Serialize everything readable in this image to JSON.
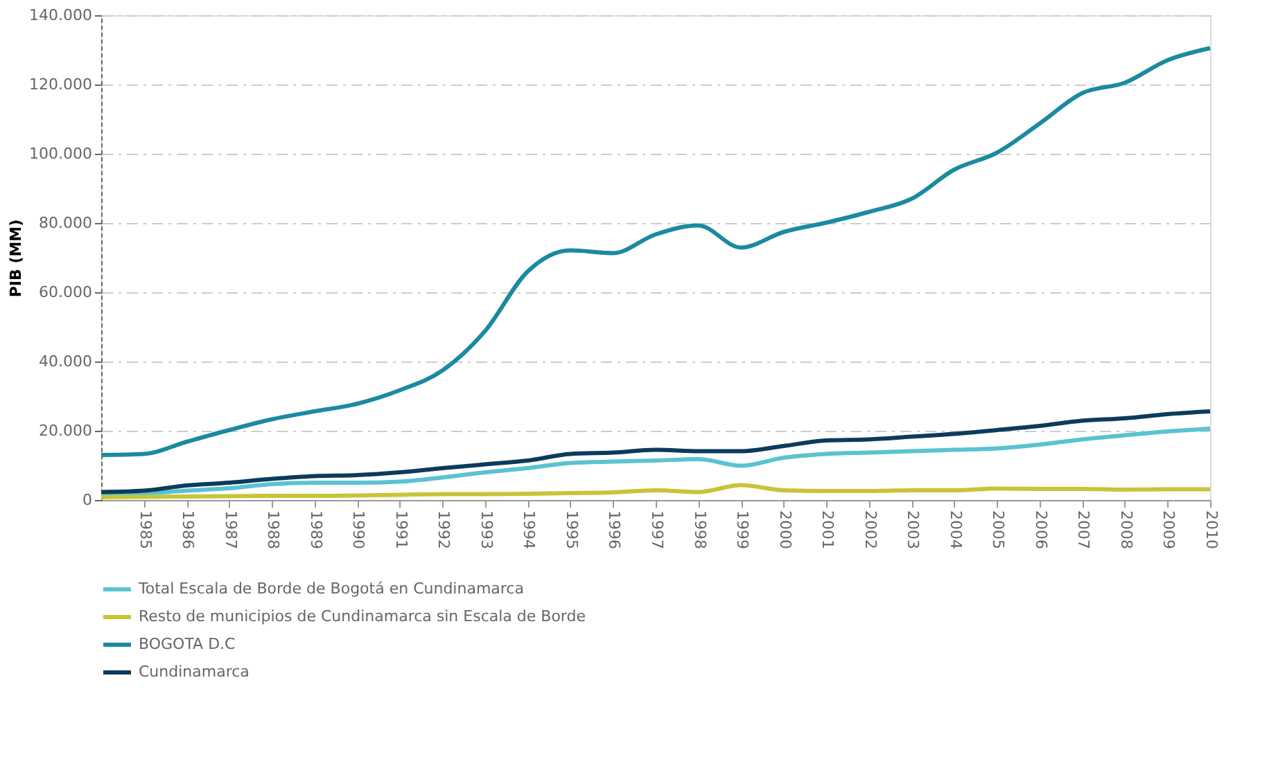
{
  "chart_data": {
    "type": "line",
    "ylabel": "PIB (MM)",
    "x": [
      1984,
      1985,
      1986,
      1987,
      1988,
      1989,
      1990,
      1991,
      1992,
      1993,
      1994,
      1995,
      1996,
      1997,
      1998,
      1999,
      2000,
      2001,
      2002,
      2003,
      2004,
      2005,
      2006,
      2007,
      2008,
      2009,
      2010
    ],
    "series": [
      {
        "name": "Total Escala de Borde de Bogotá en Cundinamarca",
        "color": "#5bc2d0",
        "values": [
          1500,
          1900,
          2700,
          3400,
          4600,
          5000,
          5000,
          5300,
          6500,
          8000,
          9200,
          10700,
          11100,
          11400,
          11800,
          9900,
          12200,
          13300,
          13700,
          14100,
          14500,
          14900,
          16000,
          17500,
          18700,
          19800,
          20600
        ]
      },
      {
        "name": "Resto de municipios de Cundinamarca sin Escala de Borde",
        "color": "#c8c43a",
        "values": [
          800,
          900,
          1000,
          1100,
          1200,
          1200,
          1300,
          1500,
          1700,
          1700,
          1800,
          2000,
          2200,
          2800,
          2300,
          4300,
          2800,
          2600,
          2600,
          2800,
          2800,
          3300,
          3200,
          3200,
          3000,
          3100,
          3100
        ]
      },
      {
        "name": "BOGOTA D.C",
        "color": "#1b8aa0",
        "values": [
          13000,
          13300,
          16800,
          20200,
          23300,
          25600,
          27800,
          31700,
          37400,
          48800,
          66000,
          72100,
          71300,
          76700,
          79300,
          72900,
          77400,
          80100,
          83200,
          87000,
          95400,
          100300,
          108700,
          117500,
          120500,
          127000,
          130500
        ]
      },
      {
        "name": "Cundinamarca",
        "color": "#0c3b5c",
        "values": [
          2300,
          2700,
          4200,
          5000,
          6100,
          6900,
          7200,
          8000,
          9200,
          10300,
          11400,
          13300,
          13700,
          14500,
          14100,
          14100,
          15600,
          17200,
          17500,
          18300,
          19100,
          20200,
          21400,
          22900,
          23600,
          24800,
          25600
        ]
      }
    ],
    "xlim": [
      1984,
      2010
    ],
    "xticks": [
      1985,
      1986,
      1987,
      1988,
      1989,
      1990,
      1991,
      1992,
      1993,
      1994,
      1995,
      1996,
      1997,
      1998,
      1999,
      2000,
      2001,
      2002,
      2003,
      2004,
      2005,
      2006,
      2007,
      2008,
      2009,
      2010
    ],
    "ylim": [
      0,
      140000
    ],
    "yticks": [
      0,
      {
        "value": 20000,
        "label": "20.000"
      },
      {
        "value": 40000,
        "label": "40.000"
      },
      {
        "value": 60000,
        "label": "60.000"
      },
      {
        "value": 80000,
        "label": "80.000"
      },
      {
        "value": 100000,
        "label": "100.000"
      },
      {
        "value": 120000,
        "label": "120.000"
      },
      {
        "value": 140000,
        "label": "140.000"
      }
    ],
    "grid": "y",
    "legend": "bottom",
    "line_style": "solid",
    "marker": "none"
  }
}
